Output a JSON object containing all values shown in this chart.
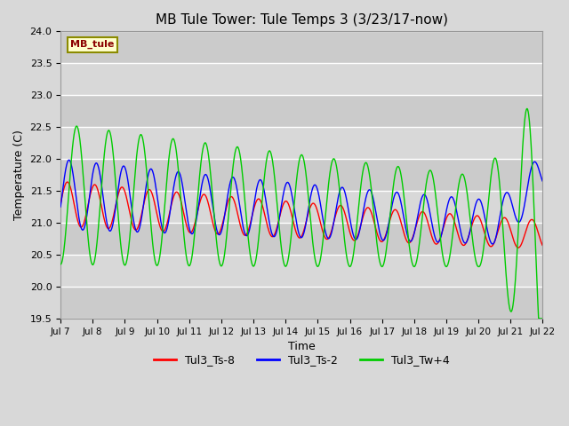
{
  "title": "MB Tule Tower: Tule Temps 3 (3/23/17-now)",
  "xlabel": "Time",
  "ylabel": "Temperature (C)",
  "xlim": [
    7,
    22
  ],
  "ylim": [
    19.5,
    24.0
  ],
  "yticks": [
    19.5,
    20.0,
    20.5,
    21.0,
    21.5,
    22.0,
    22.5,
    23.0,
    23.5,
    24.0
  ],
  "xtick_labels": [
    "Jul 7",
    "Jul 8",
    "Jul 9",
    "Jul 10",
    "Jul 11",
    "Jul 12",
    "Jul 13",
    "Jul 14",
    "Jul 15",
    "Jul 16",
    "Jul 17",
    "Jul 18",
    "Jul 19",
    "Jul 20",
    "Jul 21",
    "Jul 22"
  ],
  "xtick_positions": [
    7,
    8,
    9,
    10,
    11,
    12,
    13,
    14,
    15,
    16,
    17,
    18,
    19,
    20,
    21,
    22
  ],
  "background_color": "#d8d8d8",
  "plot_bg_color": "#d8d8d8",
  "grid_stripe_color": "#c8c8c8",
  "white_stripe_color": "#e8e8e8",
  "grid_line_color": "#ffffff",
  "title_fontsize": 11,
  "station_label": "MB_tule",
  "station_label_color": "#8b0000",
  "station_box_facecolor": "#ffffcc",
  "station_box_edgecolor": "#8b8b00",
  "series_names": [
    "Tul3_Ts-8",
    "Tul3_Ts-2",
    "Tul3_Tw+4"
  ],
  "series_colors": [
    "#ff0000",
    "#0000ff",
    "#00cc00"
  ]
}
